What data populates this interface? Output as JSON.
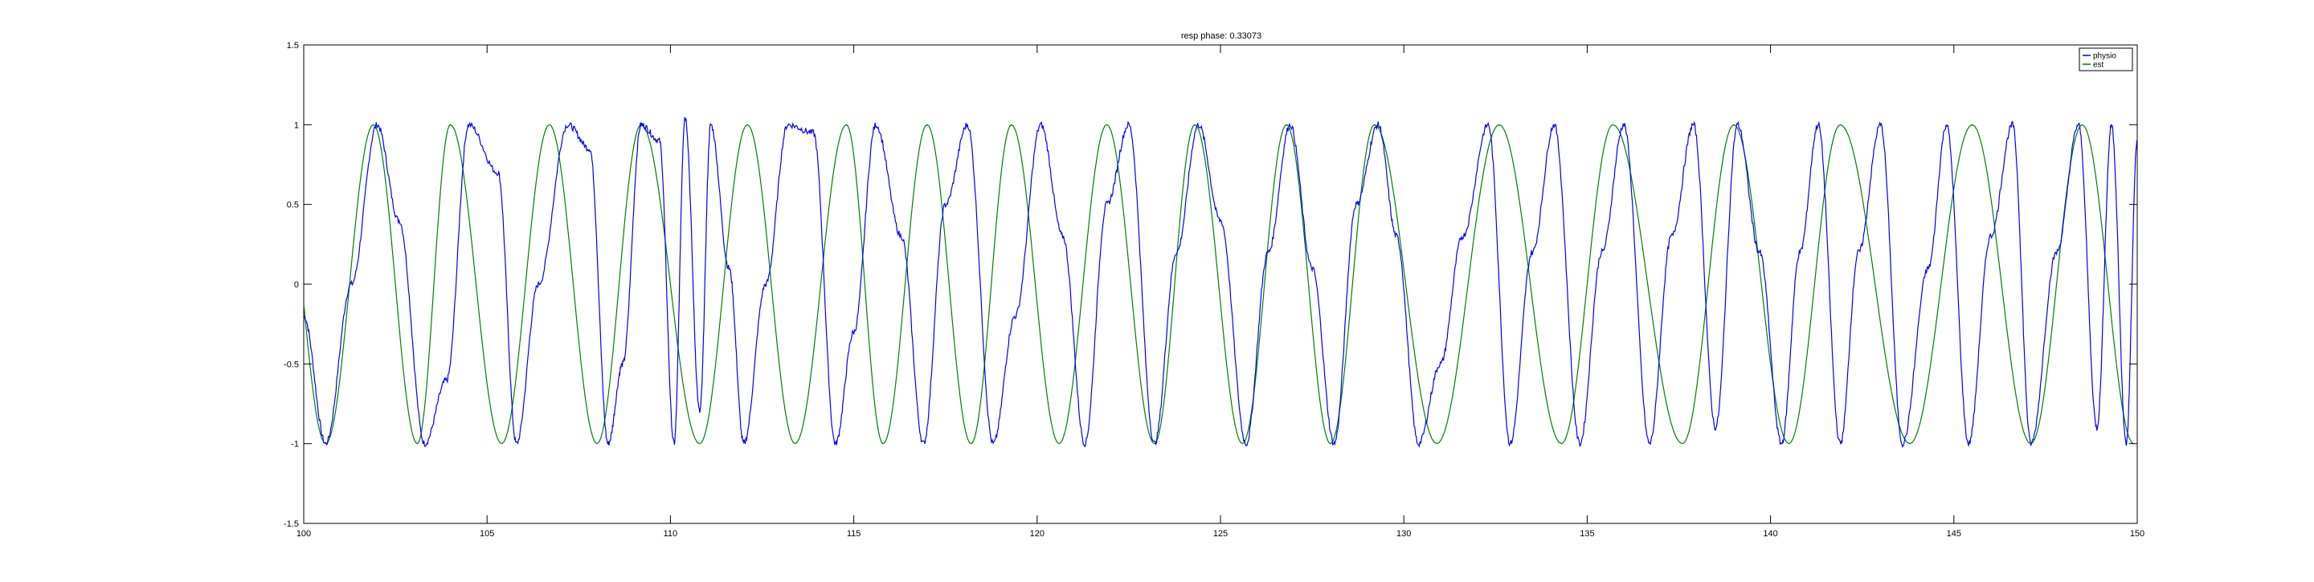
{
  "chart_data": {
    "type": "line",
    "title": "resp phase: 0.33073",
    "xlabel": "",
    "ylabel": "",
    "xlim": [
      100,
      150
    ],
    "ylim": [
      -1.5,
      1.5
    ],
    "xticks": [
      100,
      105,
      110,
      115,
      120,
      125,
      130,
      135,
      140,
      145,
      150
    ],
    "yticks": [
      -1.5,
      -1,
      -0.5,
      0,
      0.5,
      1,
      1.5
    ],
    "xtick_labels": [
      "100",
      "105",
      "110",
      "115",
      "120",
      "125",
      "130",
      "135",
      "140",
      "145",
      "150"
    ],
    "ytick_labels": [
      "-1.5",
      "-1",
      "-0.5",
      "0",
      "0.5",
      "1",
      "1.5"
    ],
    "grid": false,
    "legend_position": "top-right",
    "series": [
      {
        "name": "physio",
        "color": "#0000ff",
        "x": [
          100.0,
          100.6,
          101.3,
          102.0,
          102.6,
          103.3,
          103.9,
          104.5,
          105.3,
          105.8,
          106.4,
          107.2,
          107.8,
          108.3,
          108.7,
          109.2,
          109.7,
          110.1,
          110.4,
          110.8,
          111.1,
          111.6,
          112.0,
          112.6,
          113.2,
          113.9,
          114.5,
          115.0,
          115.6,
          116.3,
          116.9,
          117.5,
          118.1,
          118.8,
          119.4,
          120.1,
          120.7,
          121.3,
          121.9,
          122.5,
          123.2,
          123.8,
          124.4,
          125.0,
          125.7,
          126.3,
          126.9,
          127.5,
          128.1,
          128.7,
          129.3,
          129.8,
          130.4,
          131.0,
          131.6,
          132.3,
          132.9,
          133.5,
          134.1,
          134.8,
          135.4,
          136.0,
          136.7,
          137.3,
          137.9,
          138.5,
          139.1,
          139.7,
          140.3,
          140.8,
          141.3,
          141.9,
          142.4,
          143.0,
          143.6,
          144.3,
          144.8,
          145.4,
          146.0,
          146.6,
          147.1,
          147.8,
          148.4,
          148.9,
          149.3,
          149.7,
          150.0
        ],
        "y": [
          -0.2,
          -1.0,
          0.0,
          1.0,
          0.4,
          -1.0,
          -0.6,
          1.0,
          0.7,
          -1.0,
          0.0,
          1.0,
          0.85,
          -1.0,
          -0.5,
          1.0,
          0.9,
          -1.0,
          1.05,
          -0.8,
          1.0,
          0.1,
          -1.0,
          0.0,
          1.0,
          0.95,
          -1.0,
          -0.3,
          1.0,
          0.3,
          -1.0,
          0.5,
          1.0,
          -1.0,
          -0.2,
          1.0,
          0.3,
          -1.0,
          0.5,
          1.0,
          -1.0,
          0.2,
          1.0,
          0.4,
          -1.0,
          0.2,
          1.0,
          0.1,
          -1.0,
          0.5,
          1.0,
          0.3,
          -1.0,
          -0.5,
          0.3,
          1.0,
          -1.0,
          0.2,
          1.0,
          -1.0,
          0.2,
          1.0,
          -1.0,
          0.3,
          1.0,
          -0.9,
          1.0,
          0.2,
          -1.0,
          0.2,
          1.0,
          -1.0,
          0.2,
          1.0,
          -1.0,
          0.1,
          1.0,
          -1.0,
          0.3,
          1.0,
          -1.0,
          0.2,
          1.0,
          -0.9,
          1.0,
          -1.0,
          0.9
        ]
      },
      {
        "name": "est",
        "color": "#008000",
        "peaks_x": [
          101.9,
          104.0,
          106.7,
          109.2,
          112.1,
          114.8,
          117.0,
          119.3,
          121.9,
          124.3,
          126.8,
          129.2,
          132.6,
          135.7,
          139.0,
          141.9,
          145.5,
          148.5
        ],
        "troughs_x": [
          100.6,
          103.1,
          105.4,
          108.0,
          110.8,
          113.4,
          115.8,
          118.2,
          120.6,
          123.2,
          125.6,
          128.0,
          130.9,
          134.3,
          137.6,
          140.5,
          143.8,
          147.1
        ],
        "y_min": -1,
        "y_max": 1
      }
    ]
  }
}
